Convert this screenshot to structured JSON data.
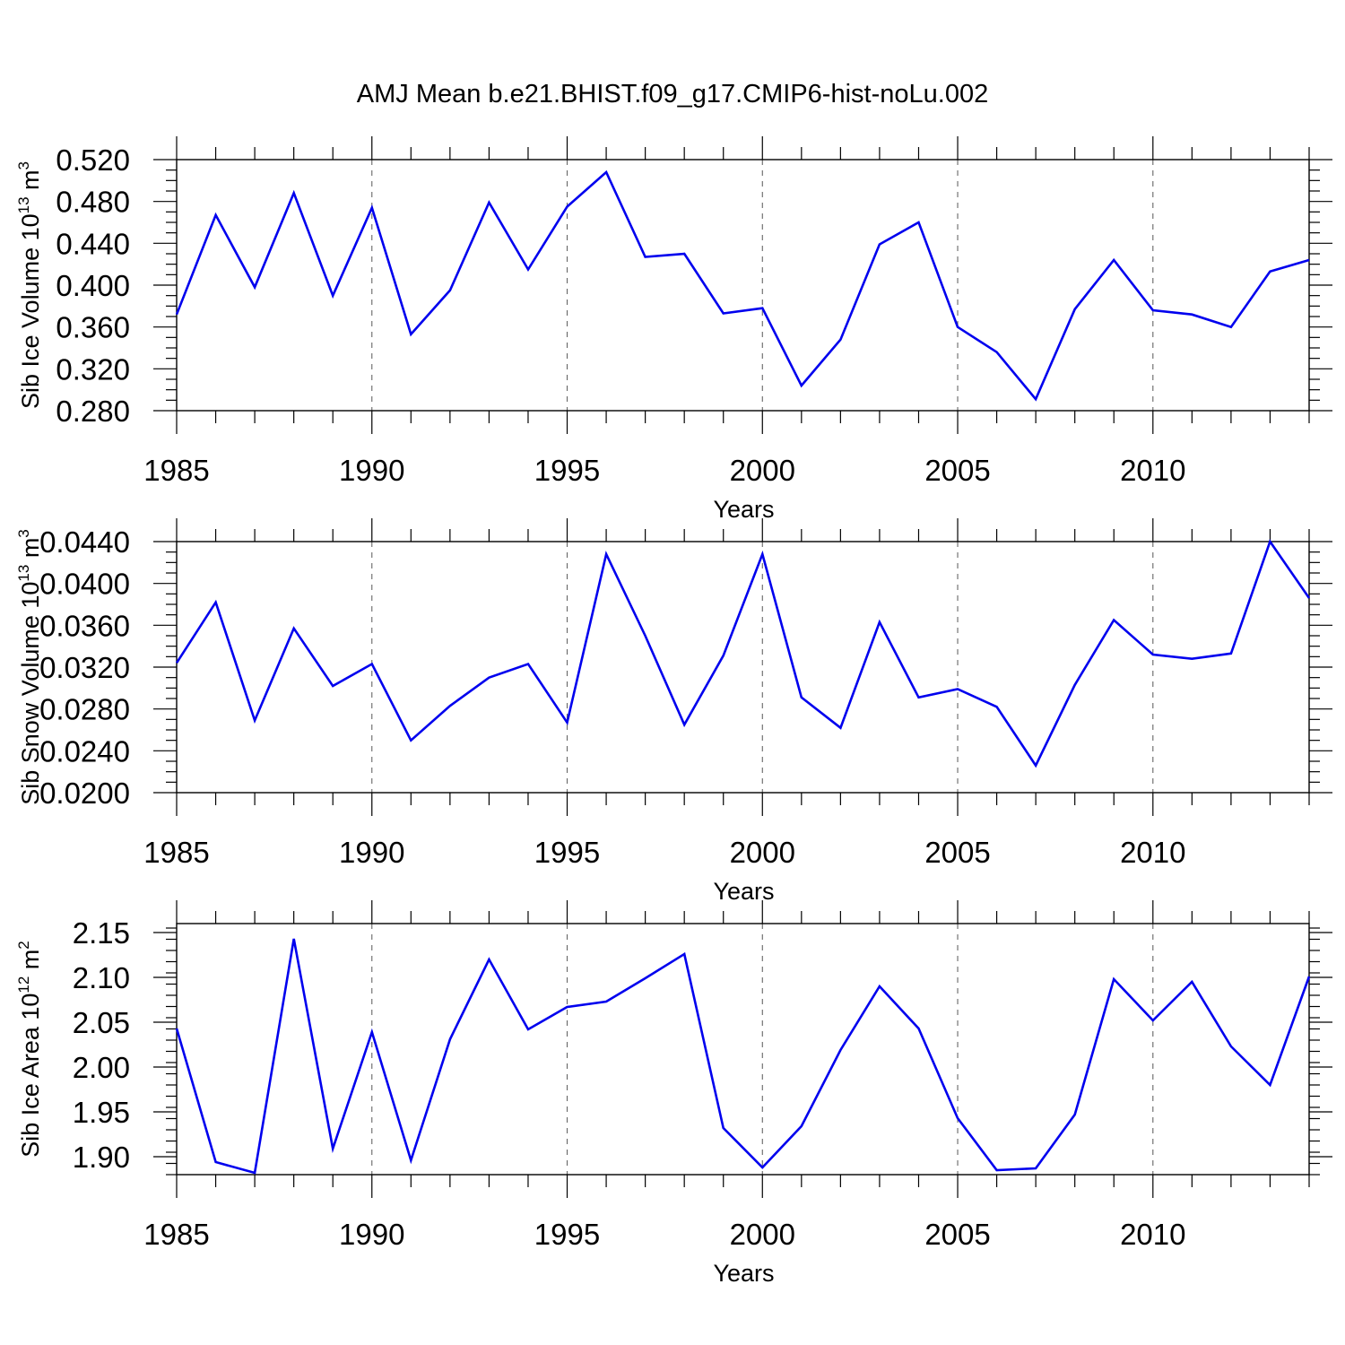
{
  "figure": {
    "title": "AMJ Mean b.e21.BHIST.f09_g17.CMIP6-hist-noLu.002",
    "line_color": "#0000ee"
  },
  "chart_data": [
    {
      "type": "line",
      "xlabel": "Years",
      "ylabel": {
        "main": "Sib Ice Volume 10",
        "exp": "13",
        "unit": " m",
        "unit_exp": "3"
      },
      "xlim": [
        1985,
        2014
      ],
      "ylim": [
        0.28,
        0.52
      ],
      "xticks": [
        1985,
        1990,
        1995,
        2000,
        2005,
        2010
      ],
      "xtick_labels": [
        "1985",
        "1990",
        "1995",
        "2000",
        "2005",
        "2010"
      ],
      "yticks": [
        0.28,
        0.32,
        0.36,
        0.4,
        0.44,
        0.48,
        0.52
      ],
      "ytick_labels": [
        "0.280",
        "0.320",
        "0.360",
        "0.400",
        "0.440",
        "0.480",
        "0.520"
      ],
      "grid": "vertical dashed at major x ticks",
      "series": [
        {
          "name": "Sib Ice Volume",
          "x": [
            1985,
            1986,
            1987,
            1988,
            1989,
            1990,
            1991,
            1992,
            1993,
            1994,
            1995,
            1996,
            1997,
            1998,
            1999,
            2000,
            2001,
            2002,
            2003,
            2004,
            2005,
            2006,
            2007,
            2008,
            2009,
            2010,
            2011,
            2012,
            2013,
            2014
          ],
          "values": [
            0.372,
            0.467,
            0.398,
            0.488,
            0.39,
            0.474,
            0.353,
            0.395,
            0.479,
            0.415,
            0.475,
            0.508,
            0.427,
            0.43,
            0.373,
            0.378,
            0.304,
            0.348,
            0.439,
            0.46,
            0.36,
            0.336,
            0.291,
            0.377,
            0.424,
            0.376,
            0.372,
            0.36,
            0.413,
            0.424
          ]
        }
      ]
    },
    {
      "type": "line",
      "xlabel": "Years",
      "ylabel": {
        "main": "Sib Snow Volume 10",
        "exp": "13",
        "unit": " m",
        "unit_exp": "3"
      },
      "xlim": [
        1985,
        2014
      ],
      "ylim": [
        0.02,
        0.044
      ],
      "xticks": [
        1985,
        1990,
        1995,
        2000,
        2005,
        2010
      ],
      "xtick_labels": [
        "1985",
        "1990",
        "1995",
        "2000",
        "2005",
        "2010"
      ],
      "yticks": [
        0.02,
        0.024,
        0.028,
        0.032,
        0.036,
        0.04,
        0.044
      ],
      "ytick_labels": [
        "0.0200",
        "0.0240",
        "0.0280",
        "0.0320",
        "0.0360",
        "0.0400",
        "0.0440"
      ],
      "grid": "vertical dashed at major x ticks",
      "series": [
        {
          "name": "Sib Snow Volume",
          "x": [
            1985,
            1986,
            1987,
            1988,
            1989,
            1990,
            1991,
            1992,
            1993,
            1994,
            1995,
            1996,
            1997,
            1998,
            1999,
            2000,
            2001,
            2002,
            2003,
            2004,
            2005,
            2006,
            2007,
            2008,
            2009,
            2010,
            2011,
            2012,
            2013,
            2014
          ],
          "values": [
            0.0324,
            0.0382,
            0.0269,
            0.0357,
            0.0302,
            0.0323,
            0.025,
            0.0283,
            0.031,
            0.0323,
            0.0267,
            0.0428,
            0.035,
            0.0265,
            0.0331,
            0.0428,
            0.0291,
            0.0262,
            0.0363,
            0.0291,
            0.0299,
            0.0282,
            0.0226,
            0.0303,
            0.0365,
            0.0332,
            0.0328,
            0.0333,
            0.044,
            0.0386
          ]
        }
      ]
    },
    {
      "type": "line",
      "xlabel": "Years",
      "ylabel": {
        "main": "Sib Ice Area 10",
        "exp": "12",
        "unit": " m",
        "unit_exp": "2"
      },
      "xlim": [
        1985,
        2014
      ],
      "ylim": [
        1.88,
        2.16
      ],
      "xticks": [
        1985,
        1990,
        1995,
        2000,
        2005,
        2010
      ],
      "xtick_labels": [
        "1985",
        "1990",
        "1995",
        "2000",
        "2005",
        "2010"
      ],
      "yticks": [
        1.9,
        1.95,
        2.0,
        2.05,
        2.1,
        2.15
      ],
      "ytick_labels": [
        "1.90",
        "1.95",
        "2.00",
        "2.05",
        "2.10",
        "2.15"
      ],
      "grid": "vertical dashed at major x ticks",
      "series": [
        {
          "name": "Sib Ice Area",
          "x": [
            1985,
            1986,
            1987,
            1988,
            1989,
            1990,
            1991,
            1992,
            1993,
            1994,
            1995,
            1996,
            1997,
            1998,
            1999,
            2000,
            2001,
            2002,
            2003,
            2004,
            2005,
            2006,
            2007,
            2008,
            2009,
            2010,
            2011,
            2012,
            2013,
            2014
          ],
          "values": [
            2.043,
            1.894,
            1.882,
            2.143,
            1.909,
            2.039,
            1.896,
            2.031,
            2.12,
            2.042,
            2.067,
            2.073,
            2.099,
            2.126,
            1.932,
            1.888,
            1.934,
            2.019,
            2.09,
            2.043,
            1.943,
            1.885,
            1.887,
            1.947,
            2.098,
            2.052,
            2.095,
            2.023,
            1.98,
            2.101
          ]
        }
      ]
    }
  ]
}
